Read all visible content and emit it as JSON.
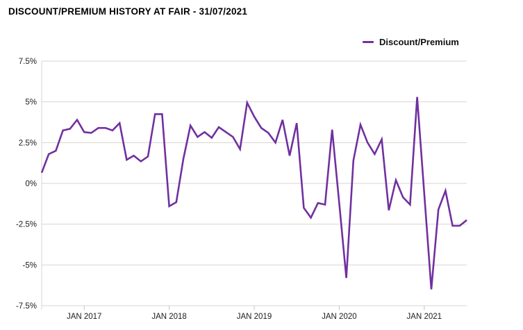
{
  "header": {
    "title": "DISCOUNT/PREMIUM HISTORY AT FAIR - 31/07/2021"
  },
  "legend": {
    "label": "Discount/Premium"
  },
  "colors": {
    "line": "#7030A0",
    "grid": "#D6D6CC",
    "tick": "#C2C2B9",
    "axis_text": "#1C1C1C"
  },
  "chart_data": {
    "type": "line",
    "title": "DISCOUNT/PREMIUM HISTORY AT FAIR - 31/07/2021",
    "xlabel": "",
    "ylabel": "",
    "grid": "horizontal",
    "legend_position": "top-right",
    "x": [
      "Jul 2016",
      "Aug 2016",
      "Sep 2016",
      "Oct 2016",
      "Nov 2016",
      "Dec 2016",
      "Jan 2017",
      "Feb 2017",
      "Mar 2017",
      "Apr 2017",
      "May 2017",
      "Jun 2017",
      "Jul 2017",
      "Aug 2017",
      "Sep 2017",
      "Oct 2017",
      "Nov 2017",
      "Dec 2017",
      "Jan 2018",
      "Feb 2018",
      "Mar 2018",
      "Apr 2018",
      "May 2018",
      "Jun 2018",
      "Jul 2018",
      "Aug 2018",
      "Sep 2018",
      "Oct 2018",
      "Nov 2018",
      "Dec 2018",
      "Jan 2019",
      "Feb 2019",
      "Mar 2019",
      "Apr 2019",
      "May 2019",
      "Jun 2019",
      "Jul 2019",
      "Aug 2019",
      "Sep 2019",
      "Oct 2019",
      "Nov 2019",
      "Dec 2019",
      "Jan 2020",
      "Feb 2020",
      "Mar 2020",
      "Apr 2020",
      "May 2020",
      "Jun 2020",
      "Jul 2020",
      "Aug 2020",
      "Sep 2020",
      "Oct 2020",
      "Nov 2020",
      "Dec 2020",
      "Jan 2021",
      "Feb 2021",
      "Mar 2021",
      "Apr 2021",
      "May 2021",
      "Jun 2021",
      "Jul 2021"
    ],
    "series": [
      {
        "name": "Discount/Premium",
        "unit": "%",
        "values": [
          0.65,
          1.8,
          2.0,
          3.25,
          3.35,
          3.9,
          3.15,
          3.1,
          3.4,
          3.4,
          3.25,
          3.7,
          1.45,
          1.7,
          1.35,
          1.65,
          4.25,
          4.25,
          -1.4,
          -1.15,
          1.5,
          3.55,
          2.85,
          3.15,
          2.8,
          3.45,
          3.15,
          2.85,
          2.1,
          4.95,
          4.1,
          3.4,
          3.1,
          2.5,
          3.9,
          1.7,
          3.7,
          -1.5,
          -2.1,
          -1.2,
          -1.3,
          3.3,
          -1.2,
          -5.8,
          1.4,
          3.6,
          2.5,
          1.8,
          2.7,
          -1.65,
          0.2,
          -0.85,
          -1.3,
          5.3,
          -0.6,
          -6.5,
          -1.6,
          -0.45,
          -2.6,
          -2.6,
          -2.25
        ]
      }
    ],
    "y_axis": {
      "min": -7.5,
      "max": 7.5,
      "step": 2.5,
      "ticks": [
        {
          "label": "7.5%",
          "value": 7.5
        },
        {
          "label": "5%",
          "value": 5
        },
        {
          "label": "2.5%",
          "value": 2.5
        },
        {
          "label": "0%",
          "value": 0
        },
        {
          "label": "-2.5%",
          "value": -2.5
        },
        {
          "label": "-5%",
          "value": -5
        },
        {
          "label": "-7.5%",
          "value": -7.5
        }
      ]
    },
    "x_axis": {
      "ticks": [
        {
          "label": "JAN 2017",
          "month_index": 6
        },
        {
          "label": "JAN 2018",
          "month_index": 18
        },
        {
          "label": "JAN 2019",
          "month_index": 30
        },
        {
          "label": "JAN 2020",
          "month_index": 42
        },
        {
          "label": "JAN 2021",
          "month_index": 54
        }
      ]
    }
  }
}
